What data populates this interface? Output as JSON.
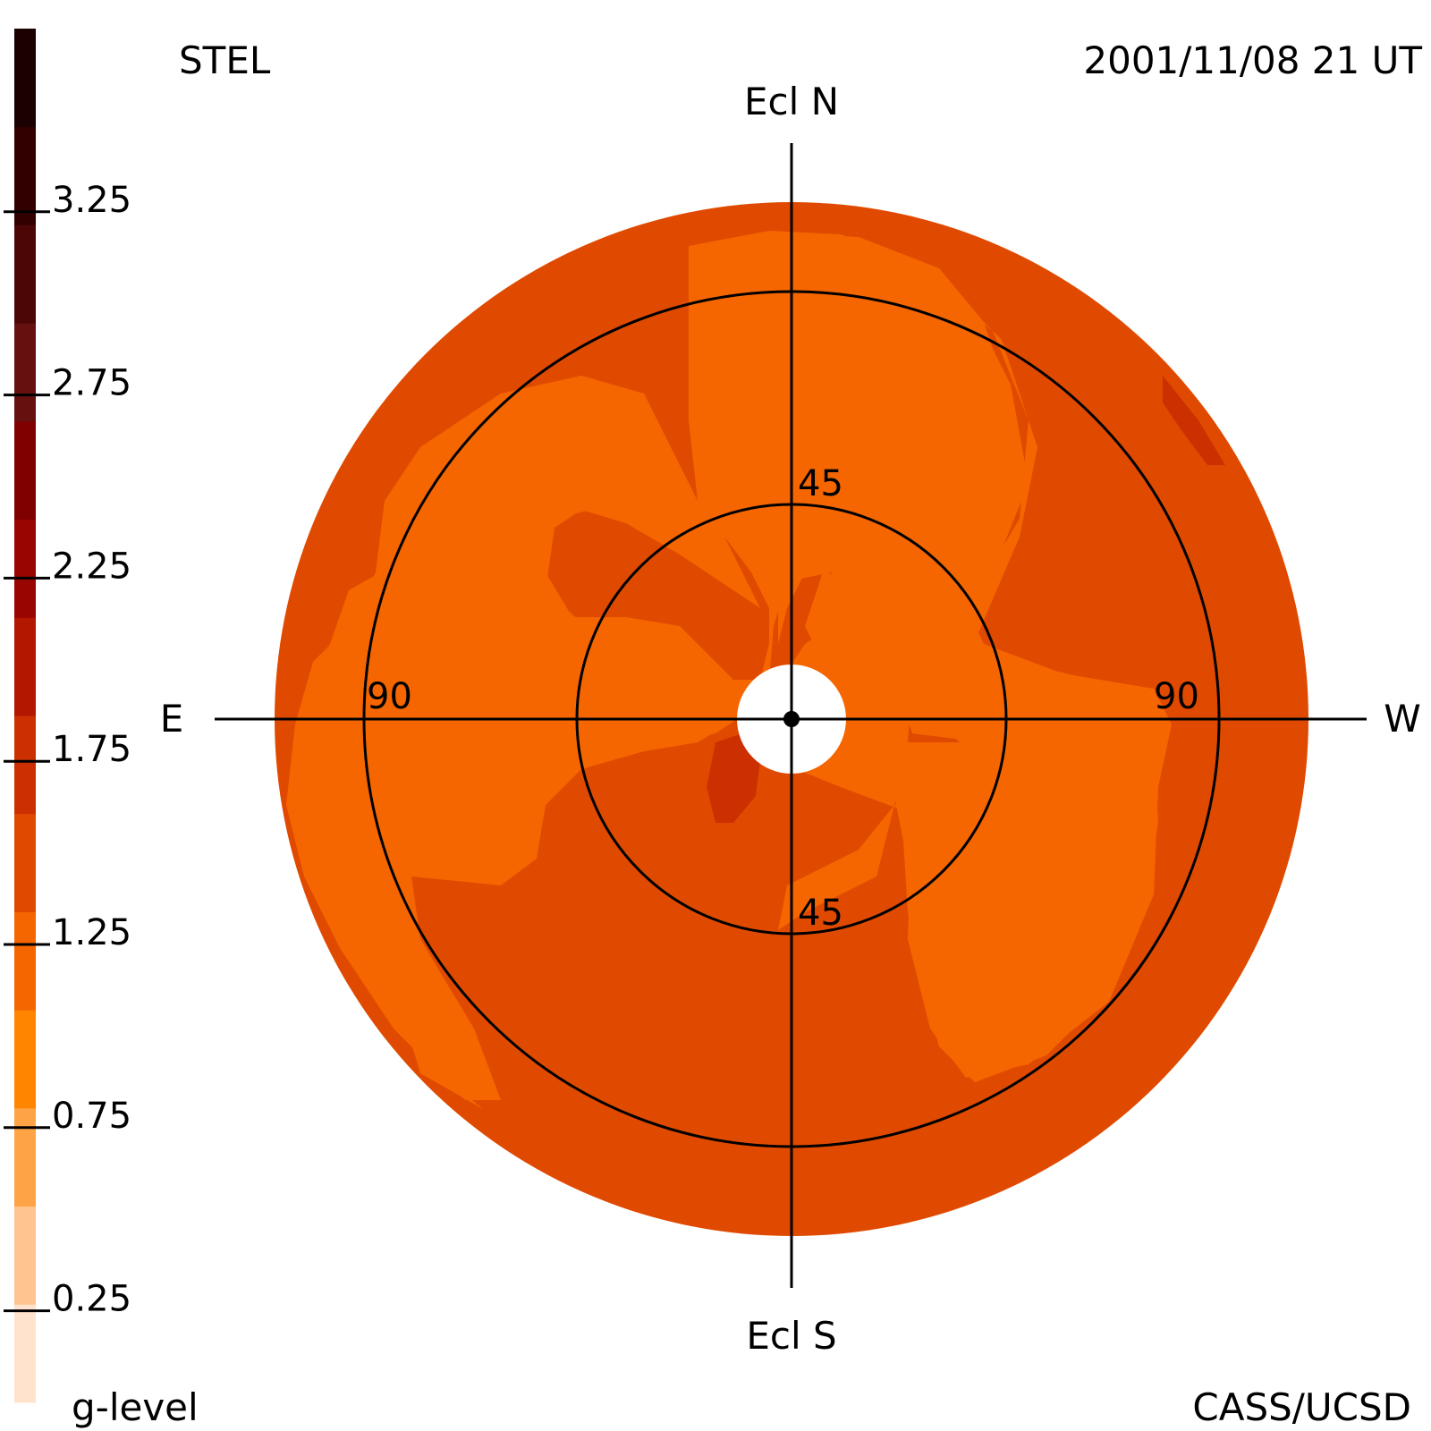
{
  "header": {
    "instrument": "STEL",
    "timestamp": "2001/11/08 21 UT"
  },
  "footer": {
    "credit": "CASS/UCSD"
  },
  "colorbar": {
    "label": "g-level",
    "ticks": [
      "3.25",
      "2.75",
      "2.25",
      "1.75",
      "1.25",
      "0.75",
      "0.25"
    ],
    "tick_values": [
      3.25,
      2.75,
      2.25,
      1.75,
      1.25,
      0.75,
      0.25
    ],
    "range": [
      0,
      3.75
    ],
    "band_colors": [
      "#ffe3cc",
      "#ffc48f",
      "#ffa347",
      "#ff8500",
      "#f56600",
      "#e04a00",
      "#cc3000",
      "#b31700",
      "#990500",
      "#800000",
      "#661010",
      "#4d0606",
      "#330000",
      "#1a0000"
    ]
  },
  "map": {
    "north_label": "Ecl N",
    "south_label": "Ecl S",
    "east_label": "E",
    "west_label": "W",
    "ring_labels": {
      "inner_top": "45",
      "inner_bottom": "45",
      "outer_left": "90",
      "outer_right": "90"
    }
  },
  "chart_data": {
    "type": "heatmap",
    "title": "",
    "projection": "fisheye sky map centered on anti-solar direction (elongation rings)",
    "rings_deg": [
      45,
      90
    ],
    "colorbar_label": "g-level",
    "colorbar_range": [
      0,
      3.75
    ],
    "regions": [
      {
        "area": "background disk",
        "g_level": 1.0,
        "color": "#f56600"
      },
      {
        "area": "outer annulus and south half",
        "g_level": 1.25,
        "color": "#e04a00"
      },
      {
        "area": "small patches near center south-east and north-west rim",
        "g_level": 1.5,
        "color": "#cc3000"
      }
    ]
  }
}
